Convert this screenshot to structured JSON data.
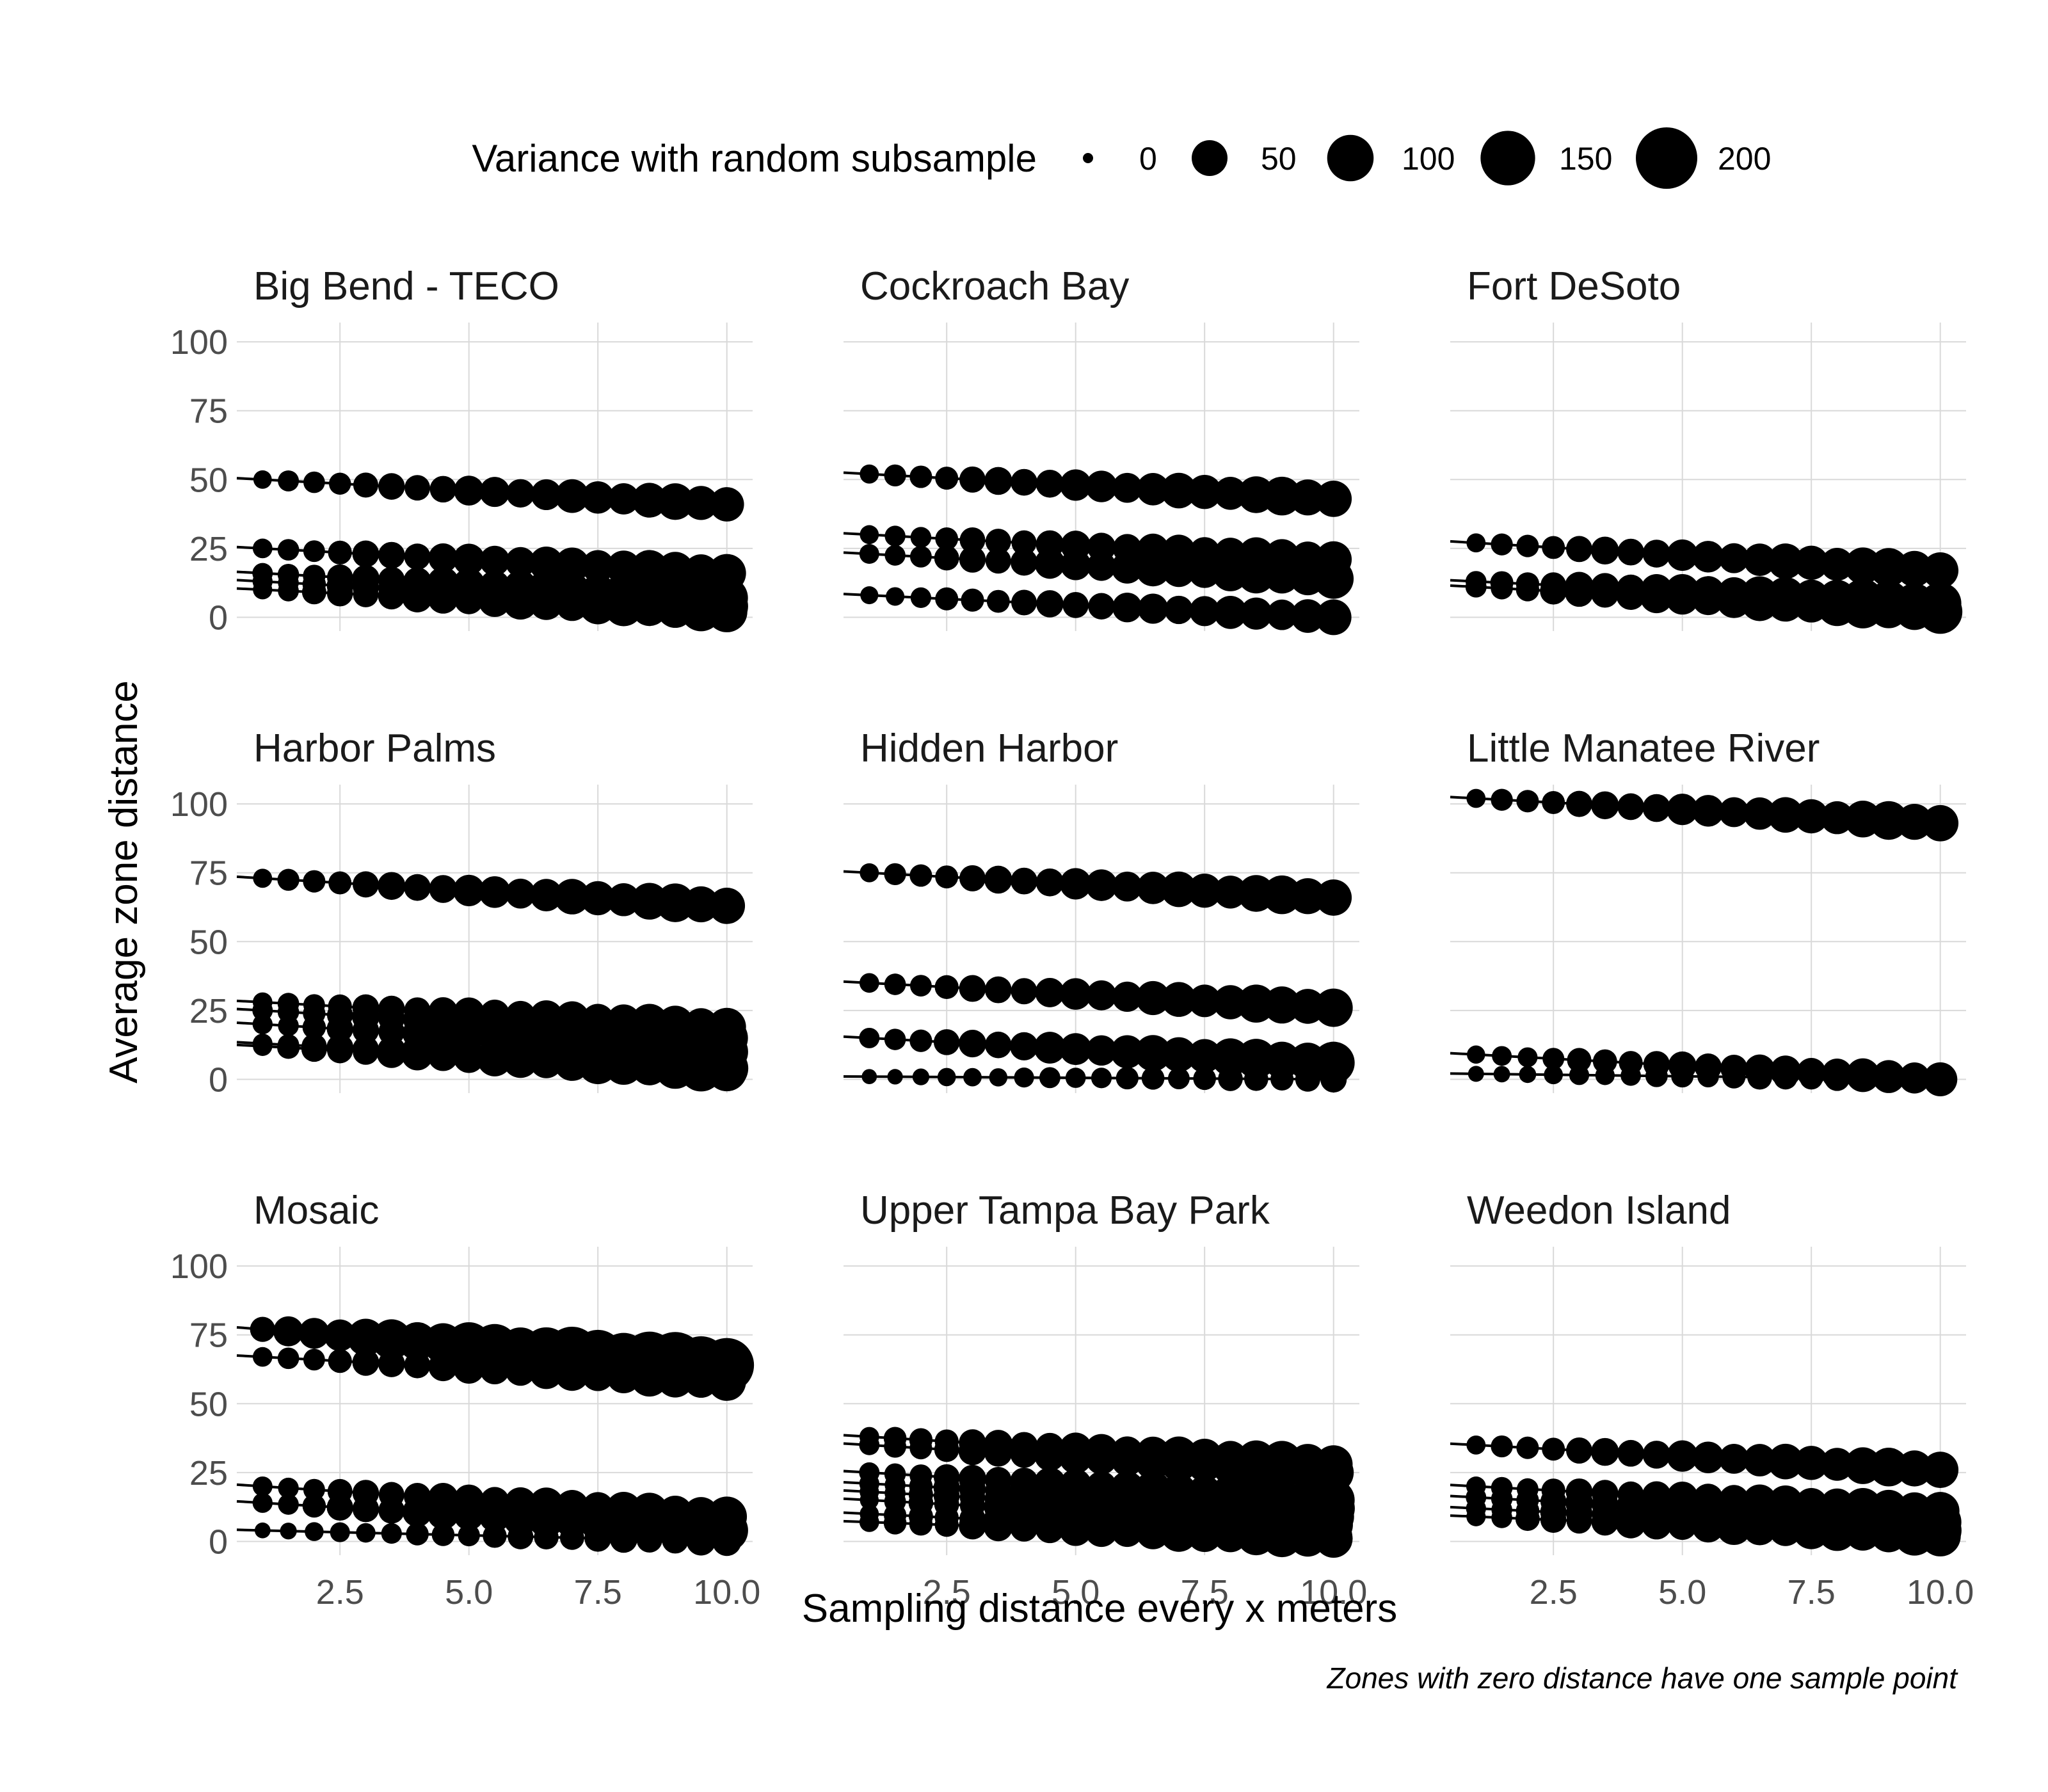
{
  "chart_data": {
    "type": "scatter",
    "xlabel": "Sampling distance every x meters",
    "ylabel": "Average zone distance",
    "caption": "Zones with zero distance have one sample point",
    "legend": {
      "title": "Variance with random subsample",
      "placement": "top",
      "values": [
        0,
        50,
        100,
        150,
        200
      ],
      "labels": [
        "0",
        "50",
        "100",
        "150",
        "200"
      ]
    },
    "x_domain": [
      0.5,
      10.5
    ],
    "ylim": [
      -5,
      107
    ],
    "x_ticks": [
      2.5,
      5.0,
      7.5,
      10.0
    ],
    "x_tick_labels": [
      "2.5",
      "5.0",
      "7.5",
      "10.0"
    ],
    "y_ticks": [
      0,
      25,
      50,
      75,
      100
    ],
    "y_tick_labels": [
      "0",
      "25",
      "50",
      "75",
      "100"
    ],
    "grid": true,
    "x_values": [
      1.0,
      1.5,
      2.0,
      2.5,
      3.0,
      3.5,
      4.0,
      4.5,
      5.0,
      5.5,
      6.0,
      6.5,
      7.0,
      7.5,
      8.0,
      8.5,
      9.0,
      9.5,
      10.0
    ],
    "facets": [
      {
        "name": "Big Bend - TECO",
        "series": [
          {
            "start": 50,
            "end": 41,
            "var_max": 60
          },
          {
            "start": 25,
            "end": 16,
            "var_max": 70
          },
          {
            "start": 16,
            "end": 7,
            "var_max": 80
          },
          {
            "start": 13,
            "end": 4,
            "var_max": 80
          },
          {
            "start": 10,
            "end": 2,
            "var_max": 80
          }
        ]
      },
      {
        "name": "Cockroach Bay",
        "series": [
          {
            "start": 52,
            "end": 43,
            "var_max": 70
          },
          {
            "start": 30,
            "end": 21,
            "var_max": 60
          },
          {
            "start": 23,
            "end": 14,
            "var_max": 70
          },
          {
            "start": 8,
            "end": 0,
            "var_max": 50
          }
        ]
      },
      {
        "name": "Fort DeSoto",
        "series": [
          {
            "start": 27,
            "end": 17,
            "var_max": 70
          },
          {
            "start": 13,
            "end": 5,
            "var_max": 90
          },
          {
            "start": 11,
            "end": 2,
            "var_max": 90
          }
        ]
      },
      {
        "name": "Harbor Palms",
        "series": [
          {
            "start": 73,
            "end": 63,
            "var_max": 70
          },
          {
            "start": 28,
            "end": 19,
            "var_max": 70
          },
          {
            "start": 25,
            "end": 15,
            "var_max": 80
          },
          {
            "start": 20,
            "end": 10,
            "var_max": 80
          },
          {
            "start": 13,
            "end": 4,
            "var_max": 90
          },
          {
            "start": 12,
            "end": 3,
            "var_max": 90
          }
        ]
      },
      {
        "name": "Hidden Harbor",
        "series": [
          {
            "start": 75,
            "end": 66,
            "var_max": 70
          },
          {
            "start": 35,
            "end": 26,
            "var_max": 70
          },
          {
            "start": 15,
            "end": 6,
            "var_max": 80
          },
          {
            "start": 1,
            "end": 0,
            "var_max": 20
          }
        ]
      },
      {
        "name": "Little Manatee River",
        "series": [
          {
            "start": 102,
            "end": 93,
            "var_max": 70
          },
          {
            "start": 9,
            "end": 0,
            "var_max": 50
          },
          {
            "start": 2,
            "end": 0,
            "var_max": 25
          }
        ]
      },
      {
        "name": "Mosaic",
        "series": [
          {
            "start": 77,
            "end": 64,
            "var_max": 200
          },
          {
            "start": 67,
            "end": 58,
            "var_max": 70
          },
          {
            "start": 20,
            "end": 9,
            "var_max": 70
          },
          {
            "start": 14,
            "end": 4,
            "var_max": 80
          },
          {
            "start": 4,
            "end": 0,
            "var_max": 30
          }
        ]
      },
      {
        "name": "Upper Tampa Bay Park",
        "series": [
          {
            "start": 38,
            "end": 28,
            "var_max": 80
          },
          {
            "start": 35,
            "end": 25,
            "var_max": 80
          },
          {
            "start": 25,
            "end": 15,
            "var_max": 80
          },
          {
            "start": 21,
            "end": 12,
            "var_max": 80
          },
          {
            "start": 18,
            "end": 9,
            "var_max": 80
          },
          {
            "start": 15,
            "end": 6,
            "var_max": 80
          },
          {
            "start": 10,
            "end": 2,
            "var_max": 80
          },
          {
            "start": 7,
            "end": 1,
            "var_max": 80
          }
        ]
      },
      {
        "name": "Weedon Island",
        "series": [
          {
            "start": 35,
            "end": 26,
            "var_max": 70
          },
          {
            "start": 20,
            "end": 11,
            "var_max": 70
          },
          {
            "start": 16,
            "end": 7,
            "var_max": 80
          },
          {
            "start": 12,
            "end": 4,
            "var_max": 80
          },
          {
            "start": 9,
            "end": 2,
            "var_max": 80
          }
        ]
      }
    ]
  }
}
